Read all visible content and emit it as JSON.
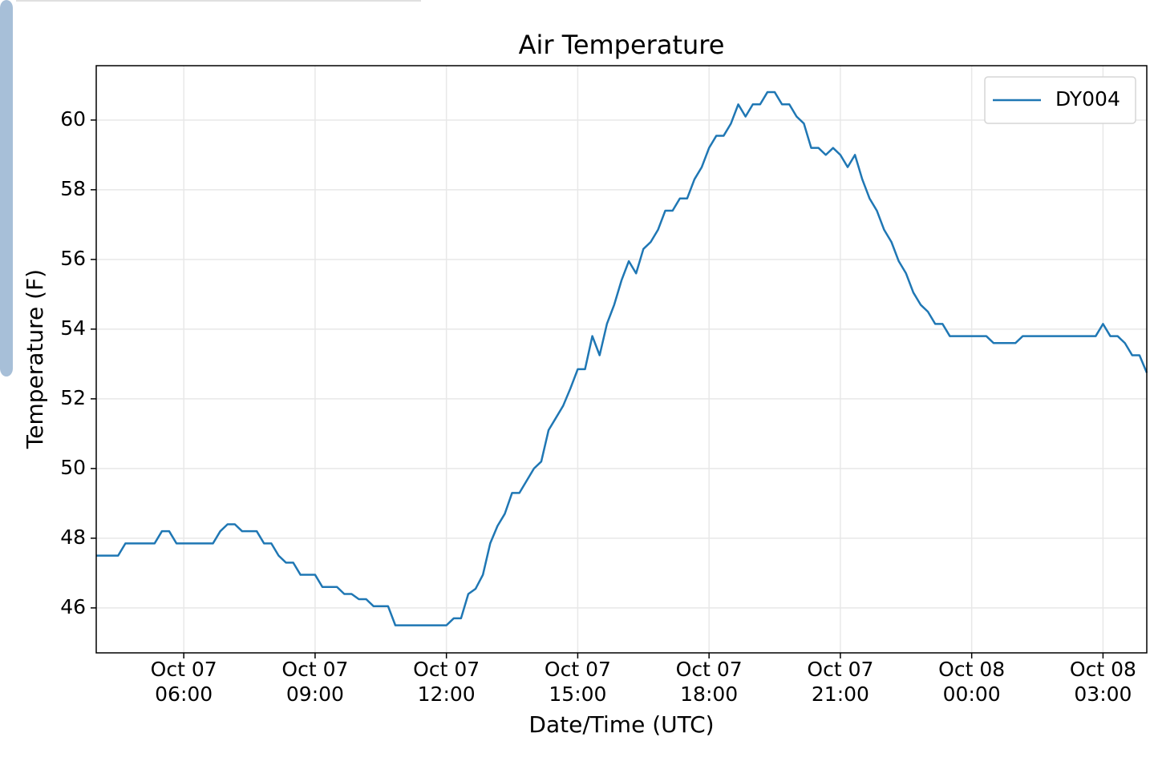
{
  "chart_data": {
    "type": "line",
    "title": "Air Temperature",
    "xlabel": "Date/Time (UTC)",
    "ylabel": "Temperature (F)",
    "x": [
      "Oct 07 04:00",
      "Oct 07 04:10",
      "Oct 07 04:20",
      "Oct 07 04:30",
      "Oct 07 04:40",
      "Oct 07 04:50",
      "Oct 07 05:00",
      "Oct 07 05:10",
      "Oct 07 05:20",
      "Oct 07 05:30",
      "Oct 07 05:40",
      "Oct 07 05:50",
      "Oct 07 06:00",
      "Oct 07 06:10",
      "Oct 07 06:20",
      "Oct 07 06:30",
      "Oct 07 06:40",
      "Oct 07 06:50",
      "Oct 07 07:00",
      "Oct 07 07:10",
      "Oct 07 07:20",
      "Oct 07 07:30",
      "Oct 07 07:40",
      "Oct 07 07:50",
      "Oct 07 08:00",
      "Oct 07 08:10",
      "Oct 07 08:20",
      "Oct 07 08:30",
      "Oct 07 08:40",
      "Oct 07 08:50",
      "Oct 07 09:00",
      "Oct 07 09:10",
      "Oct 07 09:20",
      "Oct 07 09:30",
      "Oct 07 09:40",
      "Oct 07 09:50",
      "Oct 07 10:00",
      "Oct 07 10:10",
      "Oct 07 10:20",
      "Oct 07 10:30",
      "Oct 07 10:40",
      "Oct 07 10:50",
      "Oct 07 11:00",
      "Oct 07 11:10",
      "Oct 07 11:20",
      "Oct 07 11:30",
      "Oct 07 11:40",
      "Oct 07 11:50",
      "Oct 07 12:00",
      "Oct 07 12:10",
      "Oct 07 12:20",
      "Oct 07 12:30",
      "Oct 07 12:40",
      "Oct 07 12:50",
      "Oct 07 13:00",
      "Oct 07 13:10",
      "Oct 07 13:20",
      "Oct 07 13:30",
      "Oct 07 13:40",
      "Oct 07 13:50",
      "Oct 07 14:00",
      "Oct 07 14:10",
      "Oct 07 14:20",
      "Oct 07 14:30",
      "Oct 07 14:40",
      "Oct 07 14:50",
      "Oct 07 15:00",
      "Oct 07 15:10",
      "Oct 07 15:20",
      "Oct 07 15:30",
      "Oct 07 15:40",
      "Oct 07 15:50",
      "Oct 07 16:00",
      "Oct 07 16:10",
      "Oct 07 16:20",
      "Oct 07 16:30",
      "Oct 07 16:40",
      "Oct 07 16:50",
      "Oct 07 17:00",
      "Oct 07 17:10",
      "Oct 07 17:20",
      "Oct 07 17:30",
      "Oct 07 17:40",
      "Oct 07 17:50",
      "Oct 07 18:00",
      "Oct 07 18:10",
      "Oct 07 18:20",
      "Oct 07 18:30",
      "Oct 07 18:40",
      "Oct 07 18:50",
      "Oct 07 19:00",
      "Oct 07 19:10",
      "Oct 07 19:20",
      "Oct 07 19:30",
      "Oct 07 19:40",
      "Oct 07 19:50",
      "Oct 07 20:00",
      "Oct 07 20:10",
      "Oct 07 20:20",
      "Oct 07 20:30",
      "Oct 07 20:40",
      "Oct 07 20:50",
      "Oct 07 21:00",
      "Oct 07 21:10",
      "Oct 07 21:20",
      "Oct 07 21:30",
      "Oct 07 21:40",
      "Oct 07 21:50",
      "Oct 07 22:00",
      "Oct 07 22:10",
      "Oct 07 22:20",
      "Oct 07 22:30",
      "Oct 07 22:40",
      "Oct 07 22:50",
      "Oct 07 23:00",
      "Oct 07 23:10",
      "Oct 07 23:20",
      "Oct 07 23:30",
      "Oct 07 23:40",
      "Oct 07 23:50",
      "Oct 08 00:00",
      "Oct 08 00:10",
      "Oct 08 00:20",
      "Oct 08 00:30",
      "Oct 08 00:40",
      "Oct 08 00:50",
      "Oct 08 01:00",
      "Oct 08 01:10",
      "Oct 08 01:20",
      "Oct 08 01:30",
      "Oct 08 01:40",
      "Oct 08 01:50",
      "Oct 08 02:00",
      "Oct 08 02:10",
      "Oct 08 02:20",
      "Oct 08 02:30",
      "Oct 08 02:40",
      "Oct 08 02:50",
      "Oct 08 03:00",
      "Oct 08 03:10",
      "Oct 08 03:20",
      "Oct 08 03:30",
      "Oct 08 03:40",
      "Oct 08 03:50",
      "Oct 08 04:00"
    ],
    "series": [
      {
        "name": "DY004",
        "color": "#1f77b4",
        "values": [
          47.5,
          47.5,
          47.5,
          47.5,
          47.85,
          47.85,
          47.85,
          47.85,
          47.85,
          48.2,
          48.2,
          47.85,
          47.85,
          47.85,
          47.85,
          47.85,
          47.85,
          48.2,
          48.4,
          48.4,
          48.2,
          48.2,
          48.2,
          47.85,
          47.85,
          47.5,
          47.3,
          47.3,
          46.95,
          46.95,
          46.95,
          46.6,
          46.6,
          46.6,
          46.4,
          46.4,
          46.25,
          46.25,
          46.05,
          46.05,
          46.05,
          45.5,
          45.5,
          45.5,
          45.5,
          45.5,
          45.5,
          45.5,
          45.5,
          45.7,
          45.7,
          46.4,
          46.55,
          46.95,
          47.85,
          48.35,
          48.7,
          49.3,
          49.3,
          49.65,
          50,
          50.2,
          51.1,
          51.45,
          51.8,
          52.3,
          52.85,
          52.85,
          53.8,
          53.25,
          54.15,
          54.7,
          55.4,
          55.95,
          55.6,
          56.3,
          56.5,
          56.85,
          57.4,
          57.4,
          57.75,
          57.75,
          58.3,
          58.65,
          59.2,
          59.55,
          59.55,
          59.9,
          60.45,
          60.1,
          60.45,
          60.45,
          60.8,
          60.8,
          60.45,
          60.45,
          60.1,
          59.9,
          59.2,
          59.2,
          59,
          59.2,
          59,
          58.65,
          59,
          58.3,
          57.75,
          57.4,
          56.85,
          56.5,
          55.95,
          55.6,
          55.05,
          54.7,
          54.5,
          54.15,
          54.15,
          53.8,
          53.8,
          53.8,
          53.8,
          53.8,
          53.8,
          53.6,
          53.6,
          53.6,
          53.6,
          53.8,
          53.8,
          53.8,
          53.8,
          53.8,
          53.8,
          53.8,
          53.8,
          53.8,
          53.8,
          53.8,
          54.15,
          53.8,
          53.8,
          53.6,
          53.25,
          53.25,
          52.75
        ]
      }
    ],
    "xlim": [
      "Oct 07 04:00",
      "Oct 08 04:00"
    ],
    "xticks": [
      {
        "value": "Oct 07 06:00",
        "label": [
          "Oct 07",
          "06:00"
        ]
      },
      {
        "value": "Oct 07 09:00",
        "label": [
          "Oct 07",
          "09:00"
        ]
      },
      {
        "value": "Oct 07 12:00",
        "label": [
          "Oct 07",
          "12:00"
        ]
      },
      {
        "value": "Oct 07 15:00",
        "label": [
          "Oct 07",
          "15:00"
        ]
      },
      {
        "value": "Oct 07 18:00",
        "label": [
          "Oct 07",
          "18:00"
        ]
      },
      {
        "value": "Oct 07 21:00",
        "label": [
          "Oct 07",
          "21:00"
        ]
      },
      {
        "value": "Oct 08 00:00",
        "label": [
          "Oct 08",
          "00:00"
        ]
      },
      {
        "value": "Oct 08 03:00",
        "label": [
          "Oct 08",
          "03:00"
        ]
      }
    ],
    "ylim": [
      44.71,
      61.56
    ],
    "yticks": [
      46,
      48,
      50,
      52,
      54,
      56,
      58,
      60
    ],
    "grid": true,
    "legend": "upper right"
  }
}
